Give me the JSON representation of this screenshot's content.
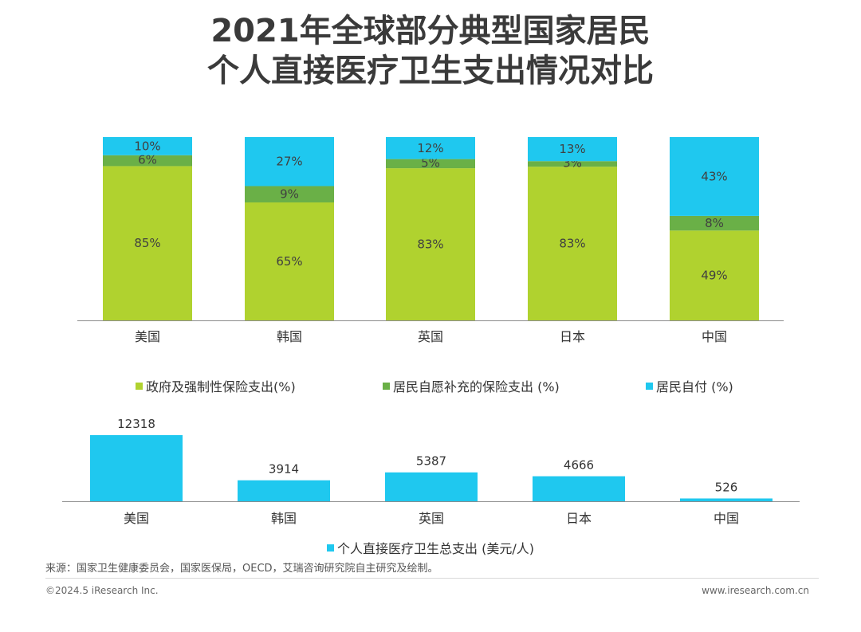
{
  "title": {
    "line1": "2021年全球部分典型国家居民",
    "line2": "个人直接医疗卫生支出情况对比"
  },
  "colors": {
    "government": "#b0d22f",
    "insurance": "#6ab047",
    "self": "#1fc8ef",
    "total": "#1fc8ef",
    "axis": "#8c8c8c"
  },
  "chart_data": [
    {
      "type": "bar",
      "stacked": true,
      "percent": true,
      "categories": [
        "美国",
        "韩国",
        "英国",
        "日本",
        "中国"
      ],
      "series": [
        {
          "name": "政府及强制性保险支出(%)",
          "values": [
            85,
            65,
            83,
            83,
            49
          ],
          "labels": [
            "85%",
            "65%",
            "83%",
            "83%",
            "49%"
          ]
        },
        {
          "name": "居民自愿补充的保险支出 (%)",
          "values": [
            6,
            9,
            5,
            3,
            8
          ],
          "labels": [
            "6%",
            "9%",
            "5%",
            "3%",
            "8%"
          ]
        },
        {
          "name": "居民自付 (%)",
          "values": [
            10,
            27,
            12,
            13,
            43
          ],
          "labels": [
            "10%",
            "27%",
            "12%",
            "13%",
            "43%"
          ]
        }
      ],
      "legend_position": "bottom"
    },
    {
      "type": "bar",
      "categories": [
        "美国",
        "韩国",
        "英国",
        "日本",
        "中国"
      ],
      "series": [
        {
          "name": "个人直接医疗卫生总支出 (美元/人)",
          "values": [
            12318,
            3914,
            5387,
            4666,
            526
          ]
        }
      ],
      "legend_position": "bottom"
    }
  ],
  "footer": {
    "source": "来源：国家卫生健康委员会，国家医保局，OECD，艾瑞咨询研究院自主研究及绘制。",
    "copyright": "©2024.5 iResearch Inc.",
    "website": "www.iresearch.com.cn"
  }
}
